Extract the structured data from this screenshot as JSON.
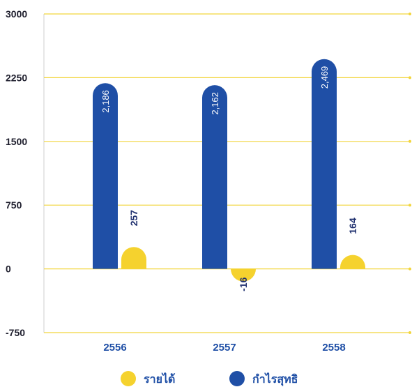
{
  "chart_data": {
    "type": "bar",
    "categories": [
      "2556",
      "2557",
      "2558"
    ],
    "series": [
      {
        "name": "กำไรสุทธิ",
        "values": [
          2186,
          2162,
          2469
        ],
        "labels": [
          "2,186",
          "2,162",
          "2,469"
        ],
        "color": "#1f4fa6"
      },
      {
        "name": "รายได้",
        "values": [
          257,
          -16,
          164
        ],
        "labels": [
          "257",
          "-16",
          "164"
        ],
        "color": "#f5d22e"
      }
    ],
    "legend_order": [
      "รายได้",
      "กำไรสุทธิ"
    ],
    "ylim": [
      -750,
      3000
    ],
    "yticks": [
      3000,
      2250,
      1500,
      750,
      0,
      -750
    ],
    "grid": true,
    "grid_color": "#f2d53c",
    "legend_position": "bottom"
  }
}
